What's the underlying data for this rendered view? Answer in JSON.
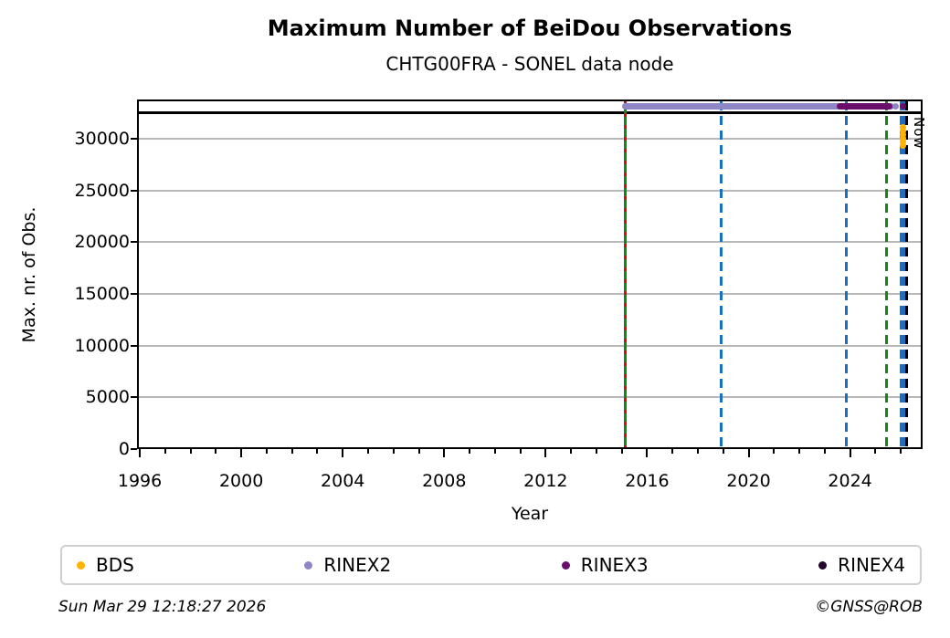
{
  "title": "Maximum Number of BeiDou Observations",
  "subtitle": "CHTG00FRA - SONEL data node",
  "footer": {
    "timestamp": "Sun Mar 29 12:18:27 2026",
    "credit": "©GNSS@ROB"
  },
  "legend": {
    "entries": [
      {
        "label": "BDS",
        "color": "#FFB300"
      },
      {
        "label": "RINEX2",
        "color": "#8F86C6"
      },
      {
        "label": "RINEX3",
        "color": "#6B0E6B"
      },
      {
        "label": "RINEX4",
        "color": "#22062E"
      }
    ]
  },
  "chart_data": {
    "type": "scatter",
    "title": "Maximum Number of BeiDou Observations",
    "subtitle": "CHTG00FRA - SONEL data node",
    "xlabel": "Year",
    "ylabel": "Max. nr. of Obs.",
    "xlim": [
      1995.89,
      2026.86
    ],
    "ylim": [
      0,
      33800
    ],
    "xticks_major": [
      1996,
      2000,
      2004,
      2008,
      2012,
      2016,
      2020,
      2024
    ],
    "xticks_minor_years": "every 1 year from 1996 to 2026",
    "yticks": [
      0,
      5000,
      10000,
      15000,
      20000,
      25000,
      30000
    ],
    "grid": "horizontal only",
    "grid_color": "#b8b8b8",
    "hline": {
      "y": 32550,
      "color": "#000000",
      "note": "solid black threshold line across plot"
    },
    "series": [
      {
        "name": "RINEX2",
        "color": "#8F86C6",
        "segments": [
          {
            "x_start": 2015.13,
            "x_end": 2018.9,
            "y": 33100
          },
          {
            "x_start": 2019.0,
            "x_end": 2024.37,
            "y": 33100
          }
        ],
        "points": [
          {
            "x": 2025.63,
            "y": 33100
          },
          {
            "x": 2025.81,
            "y": 33100
          }
        ]
      },
      {
        "name": "RINEX3",
        "color": "#6B0E6B",
        "segments": [
          {
            "x_start": 2023.61,
            "x_end": 2025.55,
            "y": 33100
          }
        ],
        "points": [
          {
            "x": 2026.1,
            "y": 33100
          }
        ]
      },
      {
        "name": "RINEX4",
        "color": "#22062E",
        "segments": [],
        "points": []
      },
      {
        "name": "BDS",
        "color": "#FFB300",
        "segments": [],
        "points": [
          {
            "x": 2026.1,
            "y": 31100
          },
          {
            "x": 2026.1,
            "y": 30750
          },
          {
            "x": 2026.1,
            "y": 30400
          },
          {
            "x": 2026.1,
            "y": 30050
          },
          {
            "x": 2026.1,
            "y": 29700
          },
          {
            "x": 2026.1,
            "y": 29350
          }
        ]
      }
    ],
    "vlines": [
      {
        "x": 2015.13,
        "style": "dashed",
        "colors": [
          "#D01010",
          "#128A12"
        ]
      },
      {
        "x": 2018.92,
        "style": "dashed",
        "colors": [
          "#1B6FC1"
        ]
      },
      {
        "x": 2023.86,
        "style": "dashed",
        "colors": [
          "#1B6FC1"
        ]
      },
      {
        "x": 2025.45,
        "style": "dashed",
        "colors": [
          "#128A12"
        ]
      },
      {
        "x": 2026.0,
        "style": "dashed",
        "colors": [
          "#1B6FC1"
        ]
      },
      {
        "x": 2026.13,
        "style": "dashed",
        "colors": [
          "#1B6FC1"
        ]
      },
      {
        "x": 2026.24,
        "style": "dashed",
        "colors": [
          "#000000"
        ],
        "label": "Now",
        "width": 3
      }
    ]
  }
}
